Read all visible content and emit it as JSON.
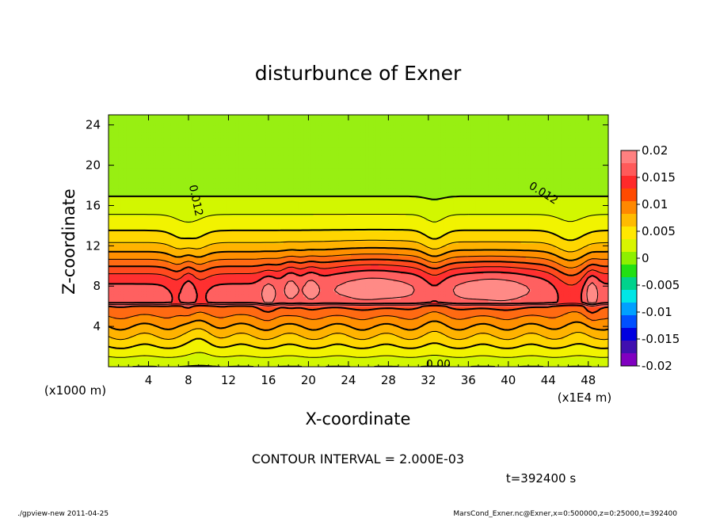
{
  "chart_data": {
    "type": "contour",
    "title": "disturbunce of Exner",
    "xlabel": "X-coordinate",
    "ylabel": "Z-coordinate",
    "x_unit_label": "(x1E4 m)",
    "y_unit_label": "(x1000 m)",
    "xlim": [
      0,
      50
    ],
    "ylim": [
      0,
      25
    ],
    "x_ticks": [
      4,
      8,
      12,
      16,
      20,
      24,
      28,
      32,
      36,
      40,
      44,
      48
    ],
    "y_ticks": [
      4,
      8,
      12,
      16,
      20,
      24
    ],
    "contour_interval_text": "CONTOUR INTERVAL = 2.000E-03",
    "time_text": "t=392400 s",
    "contour_labels": [
      {
        "text": "0.012",
        "x": 8.7,
        "z": 16.5,
        "angle": 78
      },
      {
        "text": "0.012",
        "x": 43.5,
        "z": 17.2,
        "angle": 32
      },
      {
        "text": "0.00",
        "x": 33.0,
        "z": 0.2,
        "angle": 0
      }
    ],
    "colorbar": {
      "labels": [
        "0.02",
        "0.015",
        "0.01",
        "0.005",
        "0",
        "-0.005",
        "-0.01",
        "-0.015",
        "-0.02"
      ],
      "colors": [
        "#ff8080",
        "#ff5a5a",
        "#ff2a2a",
        "#ff4a00",
        "#ff8800",
        "#ffbb00",
        "#ffe800",
        "#d8f500",
        "#8ef000",
        "#22e014",
        "#00d28c",
        "#00e6e6",
        "#00a0ff",
        "#0050ff",
        "#0000e0",
        "#4010b0",
        "#8000c0"
      ]
    },
    "field_colors": [
      "#2be21e",
      "#5ce81a",
      "#98ef12",
      "#d2f700",
      "#f2f300",
      "#ffd600",
      "#ffb300",
      "#ff9000",
      "#ff6a12",
      "#ff4a1e",
      "#ff3030",
      "#ff6060",
      "#ff8a86"
    ],
    "levels": [
      0,
      0.002,
      0.004,
      0.006,
      0.008,
      0.01,
      0.012,
      0.014,
      0.016,
      0.018,
      0.02
    ]
  },
  "footer": {
    "left": "./gpview-new   2011-04-25",
    "right": "MarsCond_Exner.nc@Exner,x=0:500000,z=0:25000,t=392400"
  }
}
